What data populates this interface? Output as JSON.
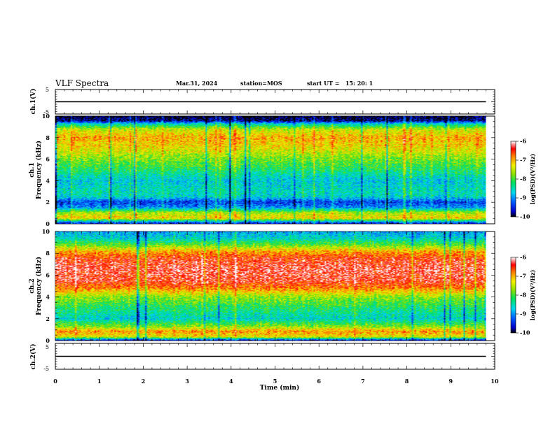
{
  "header": {
    "title": "VLF Spectra",
    "date": "Mar.31, 2024",
    "station": "station=MOS",
    "start": "start UT =   15: 20: 1"
  },
  "chart_data": [
    {
      "type": "line",
      "name": "ch1-voltage",
      "ylabel": "ch.1(V)",
      "yticks": [
        "5",
        "-5"
      ],
      "ylim": [
        -5,
        5
      ],
      "x_range": [
        0,
        9.8
      ],
      "level": 0
    },
    {
      "type": "heatmap",
      "name": "ch1-spectrogram",
      "ylabel_line1": "ch.1",
      "ylabel_line2": "Frequency (kHz)",
      "yticks": [
        "0",
        "2",
        "4",
        "6",
        "8",
        "10"
      ],
      "ylim": [
        0,
        10
      ],
      "x_range": [
        0,
        9.8
      ],
      "colorbar": {
        "label": "log(PSD)(V²/Hz)",
        "ticks": [
          "-6",
          "-7",
          "-8",
          "-9",
          "-10"
        ],
        "range": [
          -10,
          -6
        ]
      },
      "profile": {
        "freq_khz": [
          0,
          0.5,
          1.0,
          1.5,
          2.0,
          2.5,
          3.0,
          4.0,
          5.0,
          6.0,
          7.0,
          8.0,
          8.8,
          9.3,
          9.6,
          10
        ],
        "log_psd": [
          -9.6,
          -7.2,
          -7.6,
          -9.0,
          -9.4,
          -8.6,
          -8.5,
          -8.7,
          -8.2,
          -7.8,
          -7.3,
          -7.0,
          -7.5,
          -8.6,
          -9.8,
          -10
        ]
      }
    },
    {
      "type": "heatmap",
      "name": "ch2-spectrogram",
      "ylabel_line1": "ch.2",
      "ylabel_line2": "Frequency (kHz)",
      "yticks": [
        "0",
        "2",
        "4",
        "6",
        "8",
        "10"
      ],
      "ylim": [
        0,
        10
      ],
      "x_range": [
        0,
        9.8
      ],
      "colorbar": {
        "label": "log(PSD)(V²/Hz)",
        "ticks": [
          "-6",
          "-7",
          "-8",
          "-9",
          "-10"
        ],
        "range": [
          -10,
          -6
        ]
      },
      "profile": {
        "freq_khz": [
          0,
          0.3,
          0.8,
          1.3,
          2.0,
          3.0,
          4.0,
          4.8,
          5.5,
          6.5,
          7.5,
          8.2,
          8.8,
          9.4,
          10
        ],
        "log_psd": [
          -9.6,
          -7.4,
          -6.9,
          -7.8,
          -8.6,
          -8.2,
          -7.7,
          -6.8,
          -6.4,
          -6.3,
          -6.5,
          -7.0,
          -7.9,
          -8.6,
          -8.9
        ]
      }
    },
    {
      "type": "line",
      "name": "ch2-voltage",
      "ylabel": "ch.2(V)",
      "yticks": [
        "5",
        "-5"
      ],
      "ylim": [
        -5,
        5
      ],
      "x_range": [
        0,
        9.8
      ],
      "level": 0
    }
  ],
  "xaxis": {
    "label": "Time (min)",
    "ticks": [
      "0",
      "1",
      "2",
      "3",
      "4",
      "5",
      "6",
      "7",
      "8",
      "9",
      "10"
    ],
    "range": [
      0,
      10
    ]
  }
}
